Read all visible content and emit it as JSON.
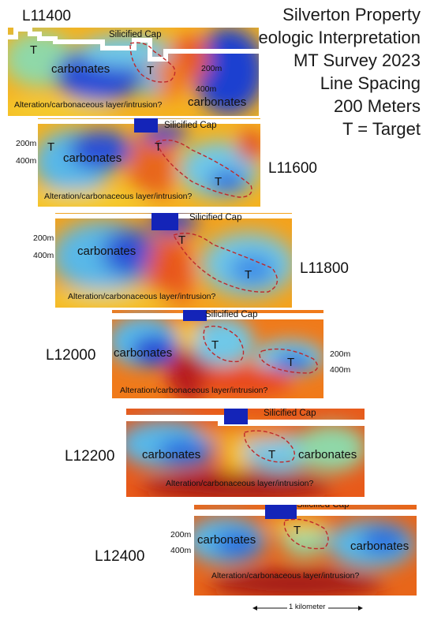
{
  "title_lines": [
    "Silverton Property",
    "Geologic Interpretation",
    "MT Survey 2023",
    "Line Spacing",
    "200 Meters",
    "T = Target"
  ],
  "labels": {
    "silicified_cap": "Silicified Cap",
    "carbonates": "carbonates",
    "target": "T",
    "alteration": "Alteration/carbonaceous layer/intrusion?",
    "depth_200": "200m",
    "depth_400": "400m"
  },
  "lines": [
    "L11400",
    "L11600",
    "L11800",
    "L12000",
    "L12200",
    "L12400"
  ],
  "scale_bar": "1 kilometer"
}
